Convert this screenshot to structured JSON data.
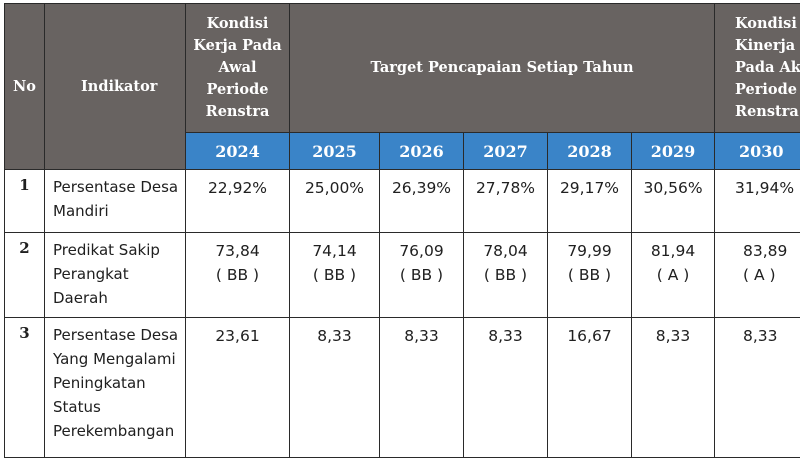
{
  "header": {
    "no": "No",
    "indikator": "Indikator",
    "kondisi_awal": "Kondisi Kerja Pada Awal Periode Renstra",
    "target": "Target Pencapaian Setiap Tahun",
    "kondisi_akhir": "Kondisi Kinerja Pada Akhir Periode Renstra"
  },
  "years": [
    "2024",
    "2025",
    "2026",
    "2027",
    "2028",
    "2029",
    "2030"
  ],
  "rows": [
    {
      "no": "1",
      "indikator": "Persentase Desa Mandiri",
      "values": [
        {
          "v": "22,92%",
          "g": ""
        },
        {
          "v": "25,00%",
          "g": ""
        },
        {
          "v": "26,39%",
          "g": ""
        },
        {
          "v": "27,78%",
          "g": ""
        },
        {
          "v": "29,17%",
          "g": ""
        },
        {
          "v": "30,56%",
          "g": ""
        },
        {
          "v": "31,94%",
          "g": ""
        }
      ]
    },
    {
      "no": "2",
      "indikator": "Predikat Sakip Perangkat Daerah",
      "values": [
        {
          "v": "73,84",
          "g": "( BB )"
        },
        {
          "v": "74,14",
          "g": "( BB )"
        },
        {
          "v": "76,09",
          "g": "( BB )"
        },
        {
          "v": "78,04",
          "g": "( BB )"
        },
        {
          "v": "79,99",
          "g": "( BB )"
        },
        {
          "v": "81,94",
          "g": "( A )"
        },
        {
          "v": "83,89",
          "g": "( A )"
        }
      ]
    },
    {
      "no": "3",
      "indikator": "Persentase Desa Yang Mengalami Peningkatan Status Perekembangan",
      "values": [
        {
          "v": "23,61",
          "g": ""
        },
        {
          "v": "8,33",
          "g": ""
        },
        {
          "v": "8,33",
          "g": ""
        },
        {
          "v": "8,33",
          "g": ""
        },
        {
          "v": "16,67",
          "g": ""
        },
        {
          "v": "8,33",
          "g": ""
        },
        {
          "v": "8,33",
          "g": ""
        }
      ]
    }
  ]
}
